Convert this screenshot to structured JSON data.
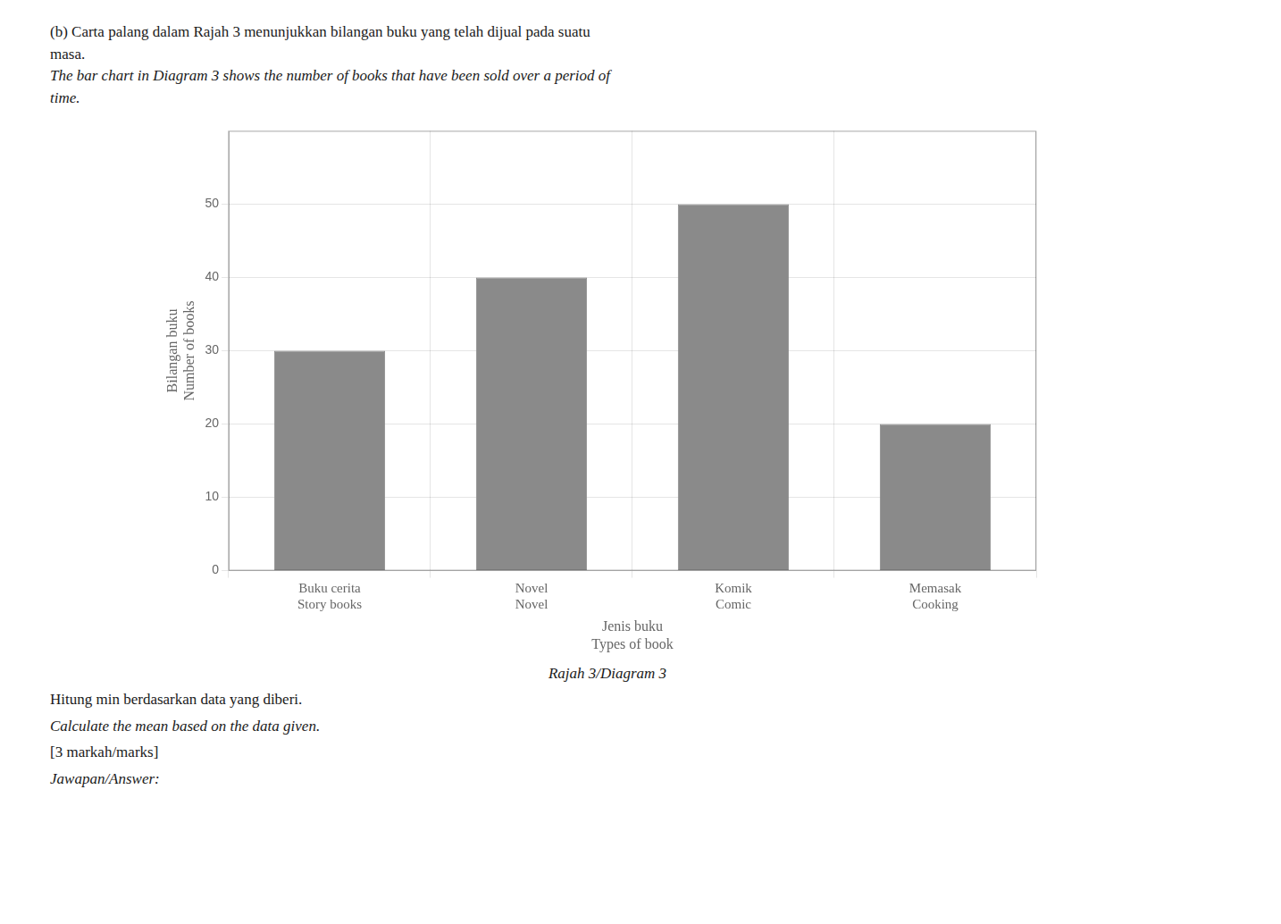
{
  "chart_data": {
    "type": "bar",
    "title": [
      "(b)  Carta palang dalam Rajah 3 menunjukkan bilangan buku yang telah dijual pada suatu",
      "masa.",
      "The bar chart in Diagram 3 shows the number of books that have been sold over a period of",
      "time."
    ],
    "xlabel": [
      "Jenis buku",
      "Types of book"
    ],
    "ylabel": [
      "Bilangan buku",
      "Number of books"
    ],
    "annotations": [
      "Rajah 3/Diagram 3",
      "Hitung min berdasarkan data yang diberi.",
      "Calculate the mean based on the data given.",
      "[3 markah/marks]",
      "Jawapan/Answer:"
    ],
    "categories": [
      "Buku cerita\nStory books",
      "Novel\nNovel",
      "Komik\nComic",
      "Memasak\nCooking"
    ],
    "values": [
      30,
      40,
      50,
      20
    ],
    "color": "#8a8a8a",
    "ylim": [
      0,
      60
    ],
    "yticks": [
      0,
      10,
      20,
      30,
      40,
      50
    ],
    "grid": true
  }
}
